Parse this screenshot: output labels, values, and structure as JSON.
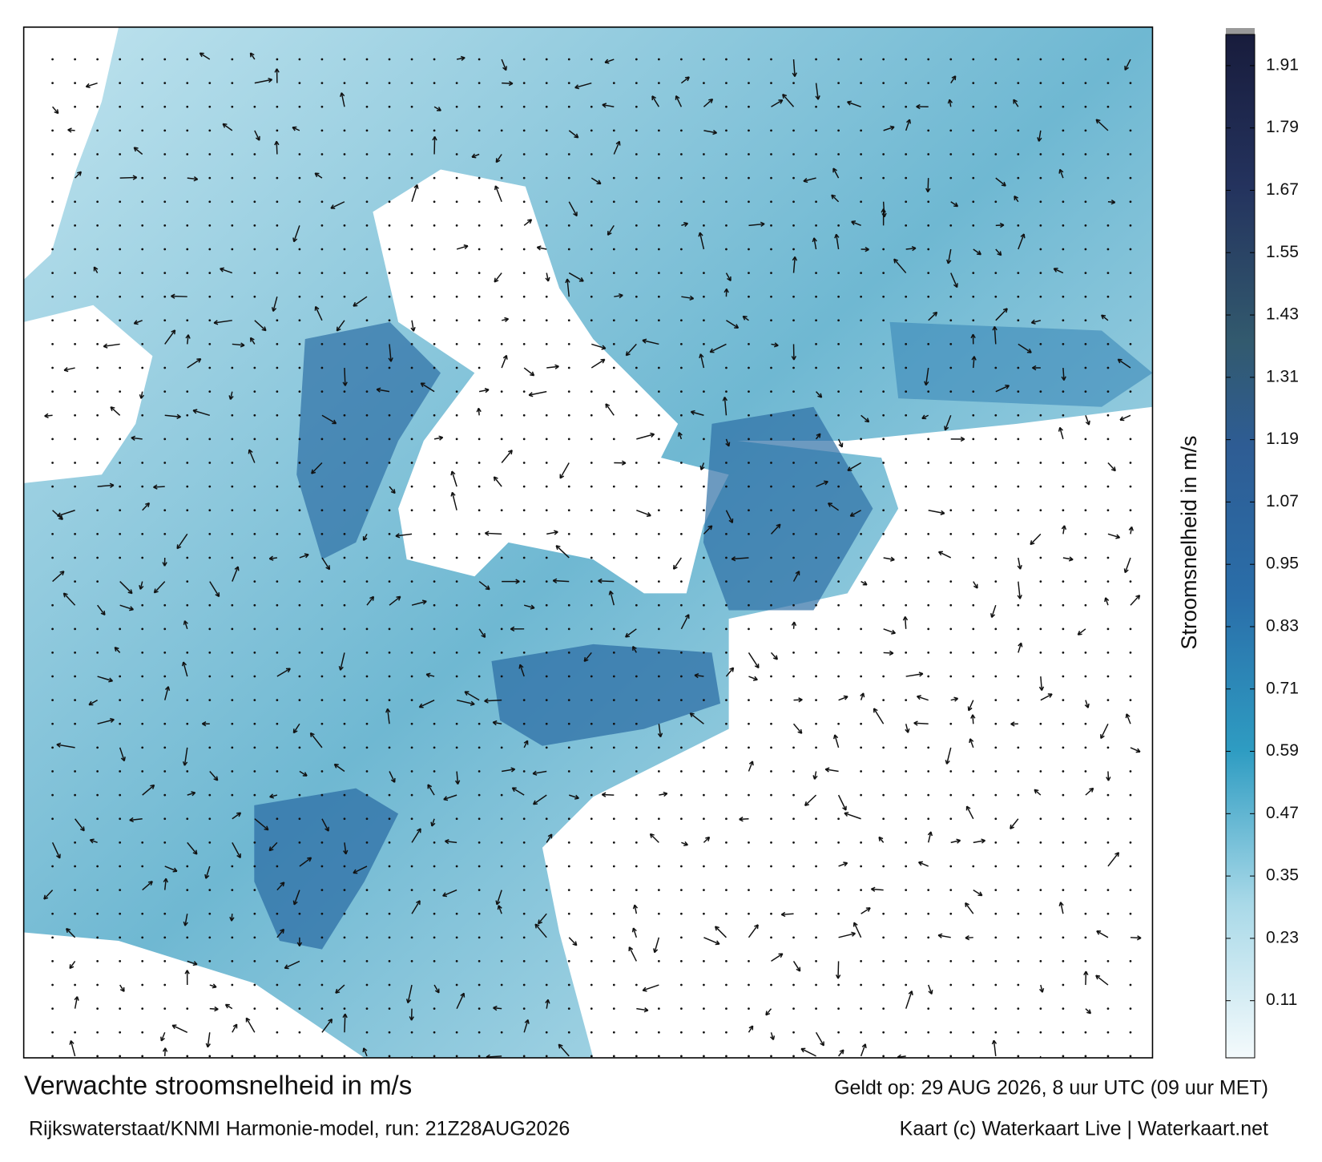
{
  "chart_data": {
    "type": "colorbar",
    "title": "Verwachte stroomsnelheid in m/s",
    "subtitle": "Rijkswaterstaat/KNMI Harmonie-model, run: 21Z28AUG2026",
    "valid_time": "Geldt op: 29 AUG 2026, 8 uur UTC (09 uur MET)",
    "credit": "Kaart (c) Waterkaart Live | Waterkaart.net",
    "ylabel": "Stroomsnelheid in m/s",
    "ylim": [
      0,
      1.97
    ],
    "yticks": [
      0.11,
      0.23,
      0.35,
      0.47,
      0.59,
      0.71,
      0.83,
      0.95,
      1.07,
      1.19,
      1.31,
      1.43,
      1.55,
      1.67,
      1.79,
      1.91
    ]
  }
}
